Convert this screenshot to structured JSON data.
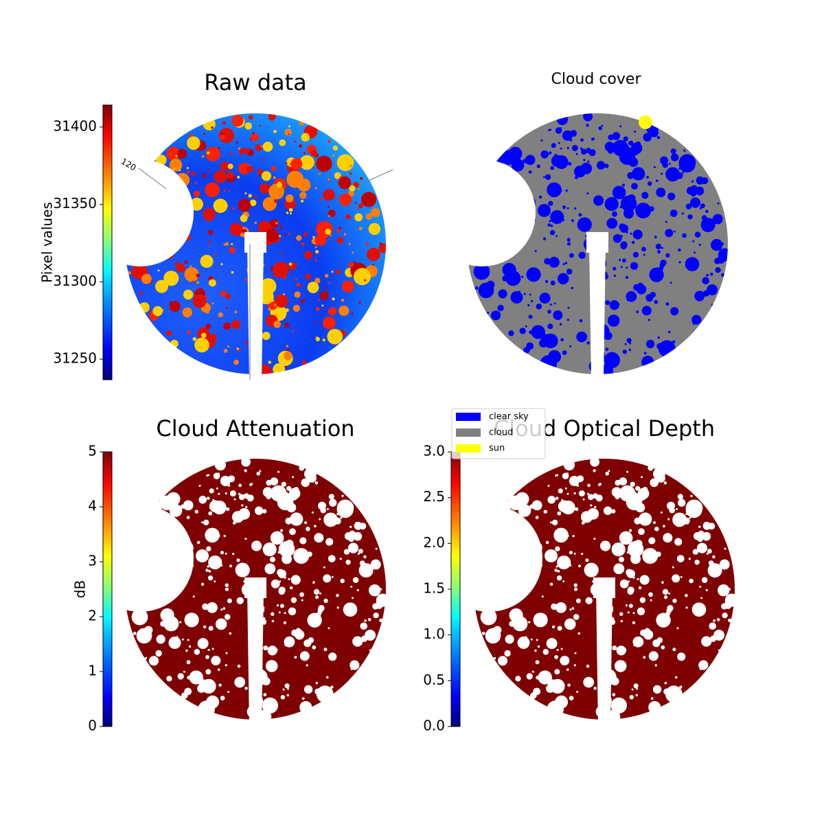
{
  "chart_data": [
    {
      "type": "image",
      "title": "Raw data",
      "colorbar": {
        "label": "Pixel values",
        "lim": [
          31236.7,
          31414.2
        ],
        "ticks": [
          31250,
          31300,
          31350,
          31400
        ]
      },
      "annotations": [
        "120"
      ]
    },
    {
      "type": "image",
      "title": "Cloud cover",
      "legend": [
        {
          "name": "clear sky",
          "color": "#0000ff"
        },
        {
          "name": "cloud",
          "color": "#808080"
        },
        {
          "name": "sun",
          "color": "#ffff00"
        }
      ]
    },
    {
      "type": "image",
      "title": "Cloud Attenuation",
      "colorbar": {
        "label": "dB",
        "lim": [
          0,
          5
        ],
        "ticks": [
          0,
          1,
          2,
          3,
          4,
          5
        ]
      }
    },
    {
      "type": "image",
      "title": "Cloud Optical Depth",
      "colorbar": {
        "lim": [
          0,
          3
        ],
        "ticks": [
          {
            "value": 0,
            "label": "0.0"
          },
          {
            "value": 0.5,
            "label": "0.5"
          },
          {
            "value": 1,
            "label": "1.0"
          },
          {
            "value": 1.5,
            "label": "1.5"
          },
          {
            "value": 2,
            "label": "2.0"
          },
          {
            "value": 2.5,
            "label": "2.5"
          },
          {
            "value": 3,
            "label": "3.0"
          }
        ]
      }
    }
  ]
}
